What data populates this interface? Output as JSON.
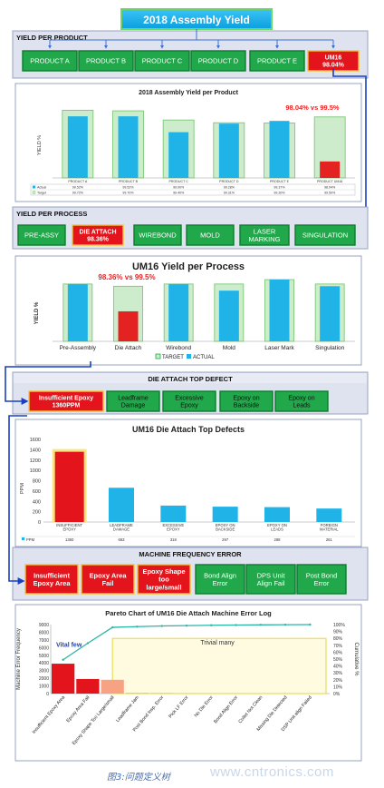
{
  "main_title": "2018 Assembly Yield",
  "yield_per_product": {
    "header": "YIELD PER PRODUCT",
    "boxes": [
      "PRODUCT A",
      "PRODUCT B",
      "PRODUCT C",
      "PRODUCT D",
      "PRODUCT E"
    ],
    "highlight": {
      "line1": "UM16",
      "line2": "98.04%"
    }
  },
  "product_chart": {
    "title": "2018 Assembly Yield  per Product",
    "ylabel": "YIELD %",
    "annotation": "98.04%  vs 99.5%",
    "categories": [
      "PRODUCT A",
      "PRODUCT B",
      "PRODUCT C",
      "PRODUCT D",
      "PRODUCT E",
      "PRODUCT UM16"
    ],
    "row_labels": [
      "Actual",
      "Target"
    ],
    "actual_labels": [
      "99.52%",
      "99.52%",
      "99.00%",
      "99.28%",
      "99.37%",
      "98.04%"
    ],
    "target_labels": [
      "99.72%",
      "99.70%",
      "99.40%",
      "99.31%",
      "99.30%",
      "99.50%"
    ],
    "actual": [
      99.52,
      99.52,
      99.0,
      99.28,
      99.37,
      98.04
    ],
    "target": [
      99.72,
      99.7,
      99.4,
      99.31,
      99.3,
      99.5
    ],
    "colors": {
      "actual": "#1fb3e8",
      "target": "#cdeccb",
      "bad": "#e52222"
    }
  },
  "yield_per_process": {
    "header": "YIELD PER PROCESS",
    "boxes": [
      "PRE-ASSY",
      "WIREBOND",
      "MOLD",
      "LASER MARKING",
      "SINGULATION"
    ],
    "highlight": {
      "line1": "DIE ATTACH",
      "line2": "98.36%"
    }
  },
  "process_chart": {
    "title": "UM16 Yield per Process",
    "ylabel": "YIELD %",
    "annotation": "98.36%  vs 99.5%",
    "categories": [
      "Pre-Assembly",
      "Die Attach",
      "Wirebond",
      "Mold",
      "Laser Mark",
      "Singulation"
    ],
    "legend": [
      "TARGET",
      "ACTUAL"
    ],
    "actual": [
      99.6,
      98.36,
      99.6,
      99.3,
      99.8,
      99.5
    ],
    "target": [
      99.6,
      99.5,
      99.6,
      99.6,
      99.8,
      99.6
    ]
  },
  "die_attach_defect": {
    "header": "DIE ATTACH TOP DEFECT",
    "highlight": {
      "line1": "Insufficient Epoxy",
      "line2": "1360PPM"
    },
    "boxes": [
      "Leadframe Damage",
      "Excessive Epoxy",
      "Epoxy on Backside",
      "Epoxy on Leads"
    ]
  },
  "defect_chart": {
    "title": "UM16 Die Attach Top Defects",
    "ylabel": "PPM",
    "row_label": "PPM",
    "categories": [
      "INSUFFICIENT EPOXY",
      "LEADFRAME DAMAGE",
      "EXCESSIVE EPOXY",
      "EPOXY ON BACKSIDE",
      "EPOXY ON LEADS",
      "FOREIGN MATERIAL"
    ],
    "value_labels": [
      "1360",
      "663",
      "318",
      "297",
      "288",
      "261"
    ],
    "values": [
      1360,
      663,
      318,
      297,
      288,
      261
    ],
    "yticks": [
      "0",
      "200",
      "400",
      "600",
      "800",
      "1000",
      "1200",
      "1400",
      "1600"
    ],
    "ylim": [
      0,
      1600
    ]
  },
  "machine_frequency": {
    "header": "MACHINE FREQUENCY ERROR",
    "red_boxes": [
      "Insufficient Epoxy Area",
      "Epoxy Area Fail",
      "Epoxy Shape too large/small"
    ],
    "green_boxes": [
      "Bond Align Error",
      "DPS Unit Align Fail",
      "Post Bond Error"
    ]
  },
  "pareto_chart": {
    "title": "Pareto Chart of UM16 Die Attach Machine Error Log",
    "ylabel": "Machine Error Frequency",
    "y2label": "Cumulative %",
    "vital_label": "Vital few",
    "trivial_label": "Trivial many",
    "categories": [
      "Insufficient Epoxy Area",
      "Epoxy Area Fail",
      "Epoxy Shape Too Large/small",
      "Leadframe Jam",
      "Post Bond Insp. Error",
      "Pick LF Error",
      "No Die Error",
      "Bond Align Error",
      "Collet Not Clean",
      "Missing Die Detected",
      "DSP Unit align Failed"
    ],
    "values": [
      3900,
      1900,
      1800,
      100,
      80,
      60,
      50,
      40,
      30,
      20,
      10
    ],
    "cumulative": [
      49,
      73,
      96,
      97,
      98,
      98.5,
      99,
      99.3,
      99.6,
      99.8,
      100
    ],
    "yticks": [
      "0",
      "1000",
      "2000",
      "3000",
      "4000",
      "5000",
      "6000",
      "7000",
      "8000",
      "9000"
    ],
    "y2ticks": [
      "0%",
      "10%",
      "20%",
      "30%",
      "40%",
      "50%",
      "60%",
      "70%",
      "80%",
      "90%",
      "100%"
    ]
  },
  "caption": "图3:问题定义树",
  "watermark": "www.cntronics.com"
}
